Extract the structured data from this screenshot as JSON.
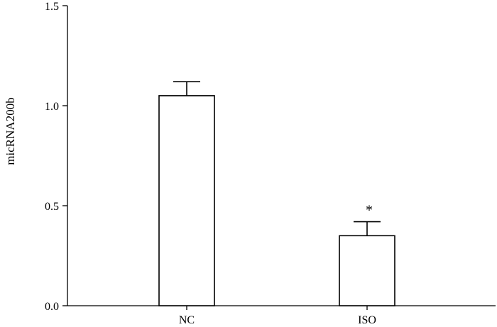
{
  "chart_data": {
    "type": "bar",
    "categories": [
      "NC",
      "ISO"
    ],
    "values": [
      1.05,
      0.35
    ],
    "error_bars": [
      0.07,
      0.07
    ],
    "annotations": [
      "",
      "*"
    ],
    "xlabel": "",
    "ylabel": "micRNA200b",
    "ylim": [
      0,
      1.5
    ],
    "yticks": [
      0,
      0.5,
      1.0,
      1.5
    ],
    "ytick_labels": [
      "0.0",
      "0.5",
      "1.0",
      "1.5"
    ],
    "grid": false,
    "legend": "none",
    "bar_fill": "#ffffff",
    "line_color": "#000000"
  }
}
